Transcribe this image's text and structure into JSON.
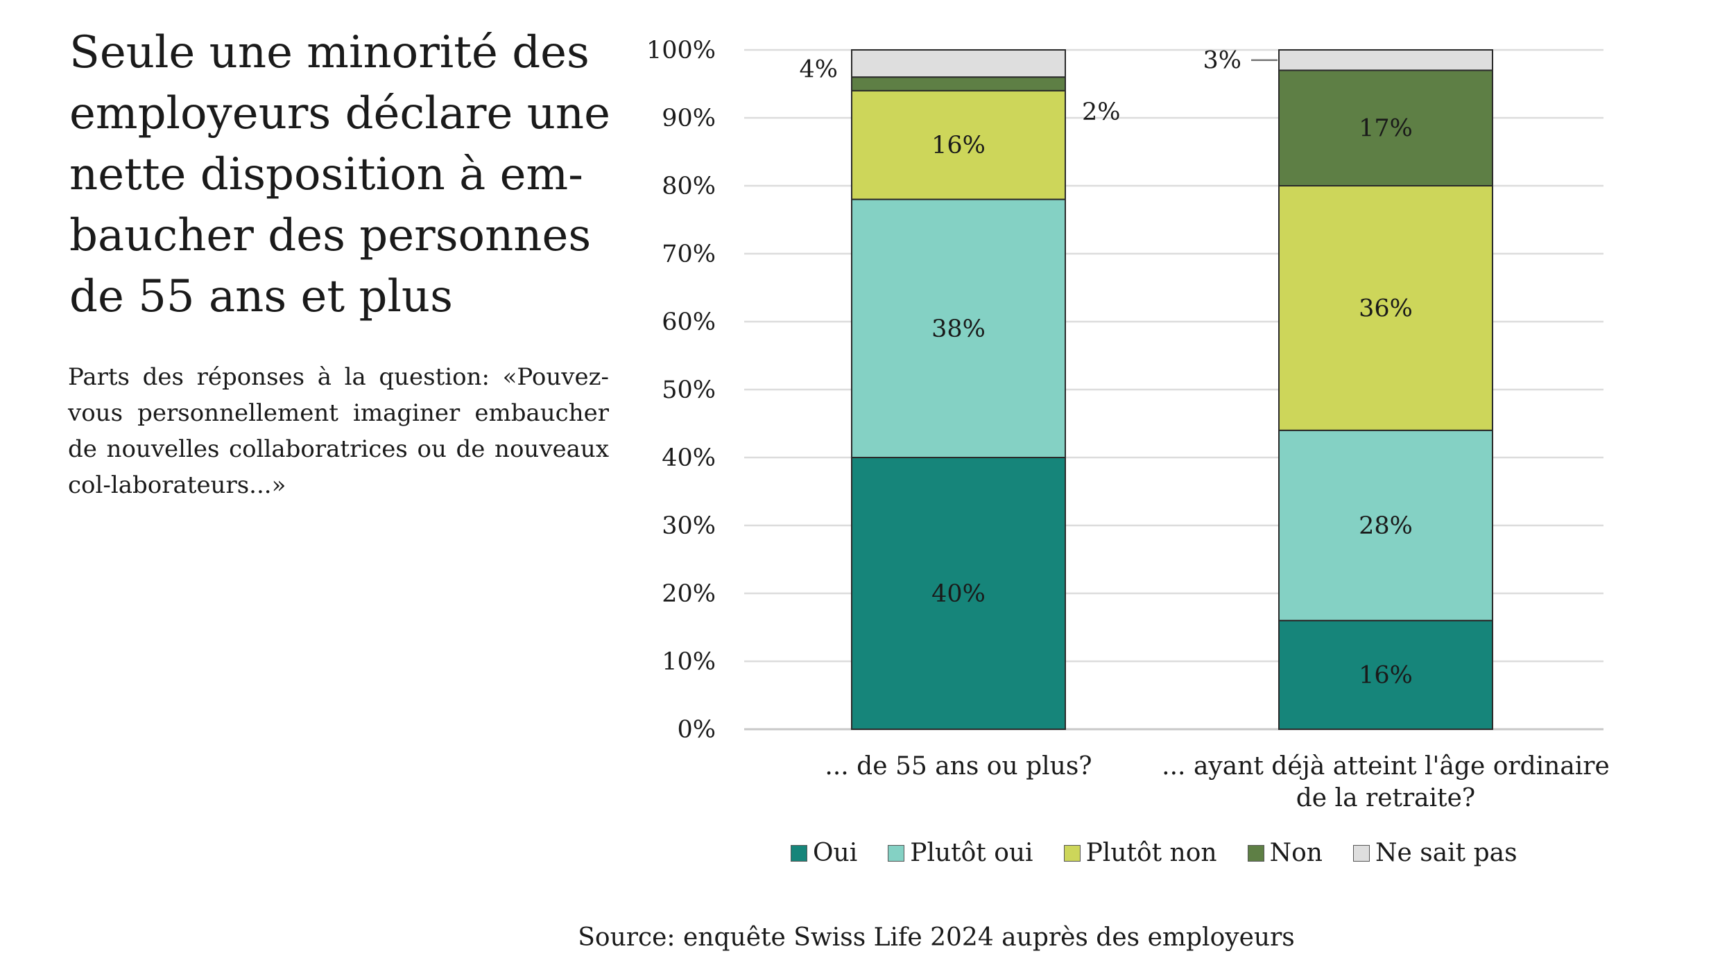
{
  "title": "Seule une minorité des employeurs déclare une nette disposition à em-baucher des personnes de 55 ans et plus",
  "subtitle": "Parts des réponses à la question: «Pouvez-vous personnellement imaginer embaucher de nouvelles collaboratrices ou de nouveaux col-laborateurs...»",
  "source": "Source: enquête Swiss Life 2024 auprès des employeurs",
  "chart_data": {
    "type": "bar",
    "stacked": true,
    "categories": [
      [
        "... de 55 ans ou plus?"
      ],
      [
        "... ayant déjà atteint l'âge ordinaire",
        "de la retraite?"
      ]
    ],
    "ylim": [
      0,
      100
    ],
    "yticks": [
      "0%",
      "10%",
      "20%",
      "30%",
      "40%",
      "50%",
      "60%",
      "70%",
      "80%",
      "90%",
      "100%"
    ],
    "grid": true,
    "legend_position": "bottom",
    "series": [
      {
        "name": "Oui",
        "color": "#16857a",
        "values": [
          40,
          16
        ],
        "labels": [
          "40%",
          "16%"
        ]
      },
      {
        "name": "Plutôt oui",
        "color": "#84d1c4",
        "values": [
          38,
          28
        ],
        "labels": [
          "38%",
          "28%"
        ]
      },
      {
        "name": "Plutôt non",
        "color": "#cdd65a",
        "values": [
          16,
          36
        ],
        "labels": [
          "16%",
          "36%"
        ]
      },
      {
        "name": "Non",
        "color": "#5e7f45",
        "values": [
          2,
          17
        ],
        "labels": [
          "2%",
          "17%"
        ]
      },
      {
        "name": "Ne sait pas",
        "color": "#dedede",
        "values": [
          4,
          3
        ],
        "labels": [
          "4%",
          "3%"
        ]
      }
    ]
  }
}
